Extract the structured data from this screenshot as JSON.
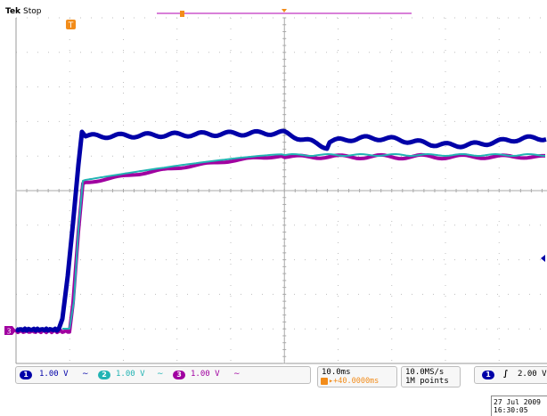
{
  "header": {
    "brand": "Tek",
    "status": "Stop"
  },
  "colors": {
    "ch1": "#0000a8",
    "ch2": "#22b3b3",
    "ch3": "#a000a0",
    "trigger": "#f28c1a",
    "grid": "#bfbfbf"
  },
  "markers": {
    "trigger_marker_label": "T",
    "ground_ch3_label": "3"
  },
  "channels": [
    {
      "id": "1",
      "scale": "1.00 V",
      "coupling_icon": "bandwidth-icon"
    },
    {
      "id": "2",
      "scale": "1.00 V",
      "coupling_icon": "bandwidth-icon"
    },
    {
      "id": "3",
      "scale": "1.00 V",
      "coupling_icon": "bandwidth-icon"
    }
  ],
  "horizontal": {
    "time_div": "10.0ms",
    "delay": "▸+40.0000ms",
    "sample_rate": "10.0MS/s",
    "record_length": "1M points"
  },
  "trigger": {
    "source": "1",
    "slope_icon": "rising-edge-icon",
    "level": "2.00 V"
  },
  "timestamp": {
    "date": "27 Jul  2009",
    "time": "16:30:05"
  }
}
